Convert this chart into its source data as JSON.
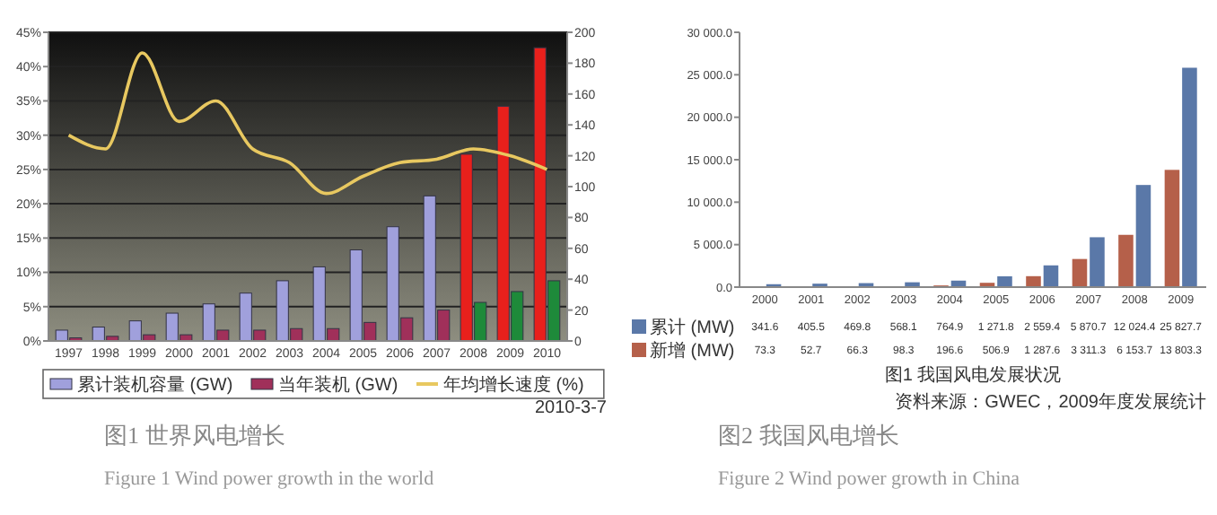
{
  "chart_data": [
    {
      "type": "bar",
      "title": "图1 世界风电增长",
      "subtitle": "Figure 1 Wind power growth in the world",
      "annotations": [
        "2010-3-7"
      ],
      "categories": [
        "1997",
        "1998",
        "1999",
        "2000",
        "2001",
        "2002",
        "2003",
        "2004",
        "2005",
        "2006",
        "2007",
        "2008",
        "2009",
        "2010"
      ],
      "series": [
        {
          "name": "累计装机容量 (GW)",
          "color": "#a0a0dc",
          "axis": "y2",
          "colors": [
            "#a0a0dc",
            "#a0a0dc",
            "#a0a0dc",
            "#a0a0dc",
            "#a0a0dc",
            "#a0a0dc",
            "#a0a0dc",
            "#a0a0dc",
            "#a0a0dc",
            "#a0a0dc",
            "#a0a0dc",
            "#e8201c",
            "#e8201c",
            "#e8201c"
          ],
          "values": [
            7,
            9,
            13,
            18,
            24,
            31,
            39,
            48,
            59,
            74,
            94,
            121,
            152,
            190
          ]
        },
        {
          "name": "当年装机 (GW)",
          "color": "#a0305a",
          "axis": "y2",
          "colors": [
            "#a0305a",
            "#a0305a",
            "#a0305a",
            "#a0305a",
            "#a0305a",
            "#a0305a",
            "#a0305a",
            "#a0305a",
            "#a0305a",
            "#a0305a",
            "#a0305a",
            "#1e8a3a",
            "#1e8a3a",
            "#1e8a3a"
          ],
          "values": [
            2,
            3,
            4,
            4,
            7,
            7,
            8,
            8,
            12,
            15,
            20,
            25,
            32,
            39
          ]
        },
        {
          "name": "年均增长速度 (%)",
          "type": "line",
          "color": "#e8c860",
          "values": [
            30,
            28,
            42,
            32,
            35,
            28,
            26,
            21.5,
            24,
            26,
            26.5,
            28,
            27,
            25
          ]
        }
      ],
      "ylim": [
        0,
        45
      ],
      "yticks": [
        {
          "value": 0,
          "label": "0%"
        },
        {
          "value": 5,
          "label": "5%"
        },
        {
          "value": 10,
          "label": "10%"
        },
        {
          "value": 15,
          "label": "15%"
        },
        {
          "value": 20,
          "label": "20%"
        },
        {
          "value": 25,
          "label": "25%"
        },
        {
          "value": 30,
          "label": "30%"
        },
        {
          "value": 35,
          "label": "35%"
        },
        {
          "value": 40,
          "label": "40%"
        },
        {
          "value": 45,
          "label": "45%"
        }
      ],
      "y2lim": [
        0,
        200
      ],
      "y2ticks": [
        0,
        20,
        40,
        60,
        80,
        100,
        120,
        140,
        160,
        180,
        200
      ],
      "grid": "y",
      "legend": "bottom",
      "marker": "none",
      "line_style": "solid"
    },
    {
      "type": "bar",
      "title": "图2 我国风电增长",
      "subtitle": "Figure 2 Wind power growth in China",
      "annotations": [
        "图1  我国风电发展状况",
        "资料来源：GWEC，2009年度发展统计"
      ],
      "categories": [
        "2000",
        "2001",
        "2002",
        "2003",
        "2004",
        "2005",
        "2006",
        "2007",
        "2008",
        "2009"
      ],
      "series": [
        {
          "name": "新增 (MW)",
          "color": "#b5604a",
          "values": [
            73.3,
            52.7,
            66.3,
            98.3,
            196.6,
            506.9,
            1287.6,
            3311.3,
            6153.7,
            13803.3
          ],
          "value_labels": [
            "73.3",
            "52.7",
            "66.3",
            "98.3",
            "196.6",
            "506.9",
            "1 287.6",
            "3 311.3",
            "6 153.7",
            "13 803.3"
          ]
        },
        {
          "name": "累计 (MW)",
          "color": "#5a78a8",
          "values": [
            341.6,
            405.5,
            469.8,
            568.1,
            764.9,
            1271.8,
            2559.4,
            5870.7,
            12024.4,
            25827.7
          ],
          "value_labels": [
            "341.6",
            "405.5",
            "469.8",
            "568.1",
            "764.9",
            "1 271.8",
            "2 559.4",
            "5 870.7",
            "12 024.4",
            "25 827.7"
          ]
        }
      ],
      "ylim": [
        0,
        30000
      ],
      "yticks": [
        {
          "value": 0,
          "label": "0.0"
        },
        {
          "value": 5000,
          "label": "5 000.0"
        },
        {
          "value": 10000,
          "label": "10 000.0"
        },
        {
          "value": 15000,
          "label": "15 000.0"
        },
        {
          "value": 20000,
          "label": "20 000.0"
        },
        {
          "value": 25000,
          "label": "25 000.0"
        },
        {
          "value": 30000,
          "label": "30 000.0"
        }
      ],
      "grid": false,
      "legend": "bottom"
    }
  ]
}
